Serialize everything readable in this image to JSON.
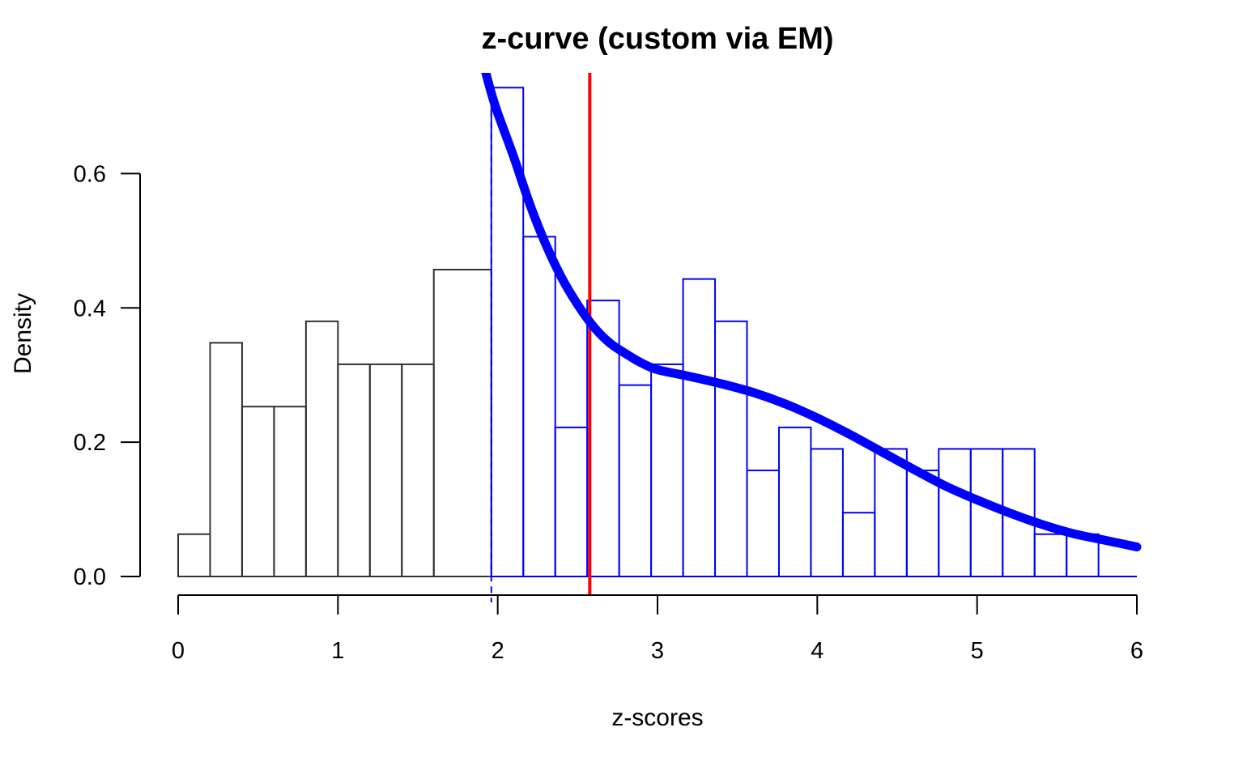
{
  "chart_data": {
    "type": "bar",
    "title": "z-curve (custom via EM)",
    "xlabel": "z-scores",
    "ylabel": "Density",
    "xlim": [
      0,
      6
    ],
    "ylim": [
      0,
      0.75
    ],
    "x_ticks": [
      "0",
      "1",
      "2",
      "3",
      "4",
      "5",
      "6"
    ],
    "y_ticks": [
      "0.0",
      "0.2",
      "0.4",
      "0.6"
    ],
    "grid": false,
    "histogram_nonsignificant": {
      "color": "#333333",
      "bins": [
        {
          "x0": 0.0,
          "x1": 0.2,
          "density": 0.063
        },
        {
          "x0": 0.2,
          "x1": 0.4,
          "density": 0.348
        },
        {
          "x0": 0.4,
          "x1": 0.6,
          "density": 0.253
        },
        {
          "x0": 0.6,
          "x1": 0.8,
          "density": 0.253
        },
        {
          "x0": 0.8,
          "x1": 1.0,
          "density": 0.38
        },
        {
          "x0": 1.0,
          "x1": 1.2,
          "density": 0.316
        },
        {
          "x0": 1.2,
          "x1": 1.4,
          "density": 0.316
        },
        {
          "x0": 1.4,
          "x1": 1.6,
          "density": 0.316
        },
        {
          "x0": 1.6,
          "x1": 1.96,
          "density": 0.457
        }
      ]
    },
    "histogram_significant": {
      "color": "#0000ff",
      "bins": [
        {
          "x0": 1.96,
          "x1": 2.16,
          "density": 0.728
        },
        {
          "x0": 2.16,
          "x1": 2.36,
          "density": 0.506
        },
        {
          "x0": 2.36,
          "x1": 2.56,
          "density": 0.222
        },
        {
          "x0": 2.56,
          "x1": 2.76,
          "density": 0.411
        },
        {
          "x0": 2.76,
          "x1": 2.96,
          "density": 0.285
        },
        {
          "x0": 2.96,
          "x1": 3.16,
          "density": 0.316
        },
        {
          "x0": 3.16,
          "x1": 3.36,
          "density": 0.443
        },
        {
          "x0": 3.36,
          "x1": 3.56,
          "density": 0.38
        },
        {
          "x0": 3.56,
          "x1": 3.76,
          "density": 0.158
        },
        {
          "x0": 3.76,
          "x1": 3.96,
          "density": 0.222
        },
        {
          "x0": 3.96,
          "x1": 4.16,
          "density": 0.19
        },
        {
          "x0": 4.16,
          "x1": 4.36,
          "density": 0.095
        },
        {
          "x0": 4.36,
          "x1": 4.56,
          "density": 0.19
        },
        {
          "x0": 4.56,
          "x1": 4.76,
          "density": 0.158
        },
        {
          "x0": 4.76,
          "x1": 4.96,
          "density": 0.19
        },
        {
          "x0": 4.96,
          "x1": 5.16,
          "density": 0.19
        },
        {
          "x0": 5.16,
          "x1": 5.36,
          "density": 0.19
        },
        {
          "x0": 5.36,
          "x1": 5.56,
          "density": 0.063
        },
        {
          "x0": 5.56,
          "x1": 5.76,
          "density": 0.063
        }
      ]
    },
    "curve": {
      "color": "#0000ff",
      "x": [
        1.92,
        1.96,
        2.0,
        2.1,
        2.2,
        2.3,
        2.4,
        2.5,
        2.6,
        2.7,
        2.8,
        2.9,
        3.0,
        3.2,
        3.4,
        3.6,
        3.8,
        4.0,
        4.2,
        4.4,
        4.6,
        4.8,
        5.0,
        5.2,
        5.4,
        5.6,
        5.8,
        6.0
      ],
      "y": [
        0.755,
        0.72,
        0.69,
        0.625,
        0.555,
        0.495,
        0.445,
        0.405,
        0.372,
        0.348,
        0.332,
        0.318,
        0.308,
        0.298,
        0.287,
        0.274,
        0.257,
        0.236,
        0.212,
        0.186,
        0.16,
        0.135,
        0.114,
        0.095,
        0.078,
        0.064,
        0.054,
        0.044
      ]
    },
    "vertical_lines": [
      {
        "x": 1.96,
        "color": "#0000ff",
        "style": "dashed"
      },
      {
        "x": 2.576,
        "color": "#ff0000",
        "style": "solid"
      }
    ]
  }
}
